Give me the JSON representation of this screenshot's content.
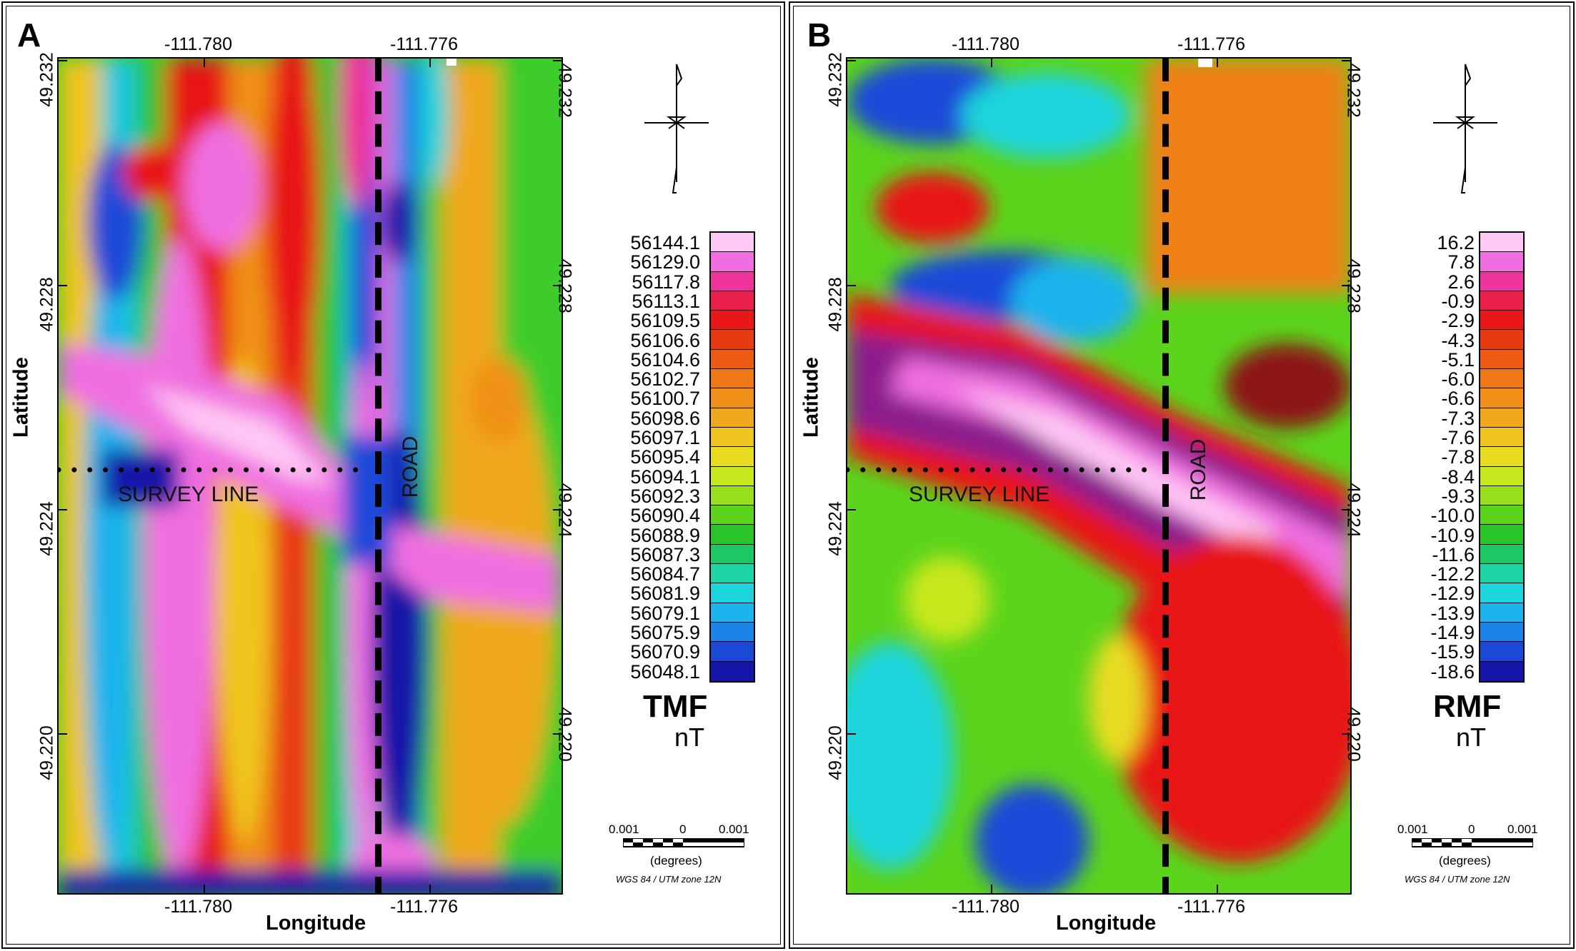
{
  "figure": {
    "panels": [
      {
        "letter": "A",
        "top_lon_labels": [
          "-111.780",
          "-111.776"
        ],
        "bottom_lon_labels": [
          "-111.780",
          "-111.776"
        ],
        "lat_labels": [
          "49.232",
          "49.228",
          "49.224",
          "49.220"
        ],
        "x_title": "Longitude",
        "y_title": "Latitude",
        "survey_line_label": "SURVEY LINE",
        "road_label": "ROAD",
        "legend": {
          "values": [
            "56144.1",
            "56129.0",
            "56117.8",
            "56113.1",
            "56109.5",
            "56106.6",
            "56104.6",
            "56102.7",
            "56100.7",
            "56098.6",
            "56097.1",
            "56095.4",
            "56094.1",
            "56092.3",
            "56090.4",
            "56088.9",
            "56087.3",
            "56084.7",
            "56081.9",
            "56079.1",
            "56075.9",
            "56070.9",
            "56048.1"
          ],
          "title": "TMF",
          "unit": "nT"
        },
        "scale": {
          "left": "0.001",
          "mid": "0",
          "right": "0.001",
          "units": "(degrees)",
          "crs": "WGS 84 / UTM zone 12N"
        }
      },
      {
        "letter": "B",
        "top_lon_labels": [
          "-111.780",
          "-111.776"
        ],
        "bottom_lon_labels": [
          "-111.780",
          "-111.776"
        ],
        "lat_labels": [
          "49.232",
          "49.228",
          "49.224",
          "49.220"
        ],
        "x_title": "Longitude",
        "y_title": "Latitude",
        "survey_line_label": "SURVEY LINE",
        "road_label": "ROAD",
        "legend": {
          "values": [
            "16.2",
            "7.8",
            "2.6",
            "-0.9",
            "-2.9",
            "-4.3",
            "-5.1",
            "-6.0",
            "-6.6",
            "-7.3",
            "-7.6",
            "-7.8",
            "-8.4",
            "-9.3",
            "-10.0",
            "-10.9",
            "-11.6",
            "-12.2",
            "-12.9",
            "-13.9",
            "-14.9",
            "-15.9",
            "-18.6"
          ],
          "title": "RMF",
          "unit": "nT"
        },
        "scale": {
          "left": "0.001",
          "mid": "0",
          "right": "0.001",
          "units": "(degrees)",
          "crs": "WGS 84 / UTM zone 12N"
        }
      }
    ],
    "colormap": [
      "#ffc8f5",
      "#f06ee0",
      "#f0329c",
      "#e8204a",
      "#e81818",
      "#e83a12",
      "#ec5a14",
      "#ee7816",
      "#f09018",
      "#f0a81c",
      "#f0c41e",
      "#e8dc20",
      "#c8e81e",
      "#98e01c",
      "#5cd41c",
      "#28c428",
      "#1cc864",
      "#1cd4a4",
      "#1cd4dc",
      "#1cb4ec",
      "#1c84e8",
      "#1c48d8",
      "#1414a8"
    ],
    "colors": {
      "road": "#000000",
      "frame": "#000000"
    }
  }
}
